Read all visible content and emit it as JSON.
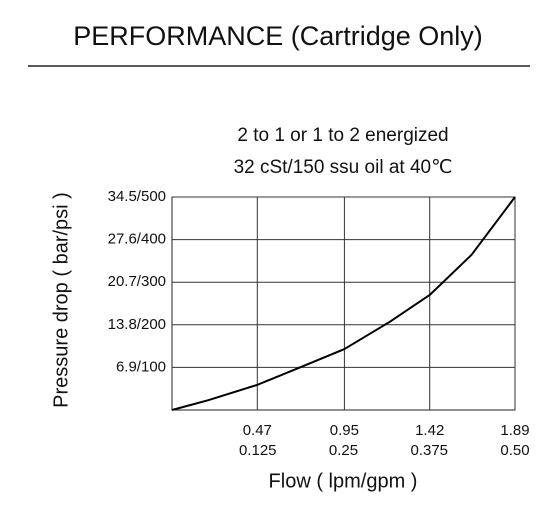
{
  "page_title": "PERFORMANCE (Cartridge Only)",
  "chart_data": {
    "type": "line",
    "title": "2 to 1 or 1 to 2 energized",
    "subtitle": "32 cSt/150 ssu oil at 40℃",
    "x_label": "Flow ( lpm/gpm )",
    "y_label": "Pressure drop ( bar/psi )",
    "x": [
      0,
      0.2,
      0.47,
      0.7,
      0.95,
      1.2,
      1.42,
      1.65,
      1.89
    ],
    "series": [
      {
        "name": "Pressure drop",
        "color": "#000000",
        "values": [
          0,
          23,
          59,
          99,
          143,
          207,
          270,
          364,
          500
        ]
      }
    ],
    "xlim": [
      0,
      1.89
    ],
    "xticks": [
      0.47,
      0.95,
      1.42,
      1.89
    ],
    "x2lim": [
      0,
      0.5
    ],
    "x2ticks": [
      0.125,
      0.25,
      0.375,
      {
        "value": 0.5,
        "label": "0.50"
      }
    ],
    "ylim": [
      0,
      500
    ],
    "yticks": [
      {
        "value": 100,
        "label": "6.9/100"
      },
      {
        "value": 200,
        "label": "13.8/200"
      },
      {
        "value": 300,
        "label": "20.7/300"
      },
      {
        "value": 400,
        "label": "27.6/400"
      },
      {
        "value": 500,
        "label": "34.5/500"
      }
    ],
    "grid": true
  }
}
